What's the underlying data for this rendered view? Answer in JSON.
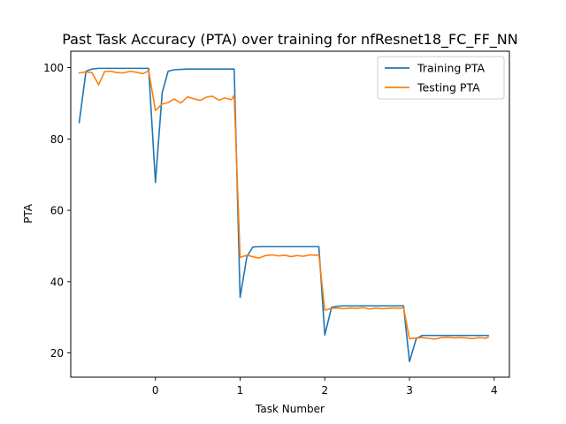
{
  "chart_data": {
    "type": "line",
    "title": "Past Task Accuracy (PTA) over training for nfResnet18_FC_FF_NN",
    "xlabel": "Task Number",
    "ylabel": "PTA",
    "xlim": [
      -1.0,
      4.18
    ],
    "ylim": [
      13.2,
      104.6
    ],
    "xticks": [
      0,
      1,
      2,
      3,
      4
    ],
    "yticks": [
      20,
      40,
      60,
      80,
      100
    ],
    "grid": false,
    "legend_placement": "top-right",
    "series": [
      {
        "name": "Training PTA",
        "color": "#1f77b4",
        "x": [
          -0.9,
          -0.82,
          -0.75,
          -0.67,
          -0.6,
          -0.53,
          -0.45,
          -0.38,
          -0.3,
          -0.22,
          -0.15,
          -0.08,
          0.0,
          0.08,
          0.15,
          0.22,
          0.3,
          0.38,
          0.45,
          0.53,
          0.6,
          0.67,
          0.75,
          0.82,
          0.9,
          0.93,
          1.0,
          1.08,
          1.15,
          1.22,
          1.3,
          1.38,
          1.45,
          1.53,
          1.6,
          1.67,
          1.75,
          1.82,
          1.9,
          1.93,
          2.0,
          2.08,
          2.15,
          2.22,
          2.3,
          2.38,
          2.45,
          2.53,
          2.6,
          2.67,
          2.75,
          2.82,
          2.9,
          2.93,
          3.0,
          3.08,
          3.15,
          3.22,
          3.3,
          3.38,
          3.45,
          3.53,
          3.6,
          3.67,
          3.75,
          3.82,
          3.9,
          3.93
        ],
        "y": [
          84.6,
          99.0,
          99.6,
          99.8,
          99.8,
          99.8,
          99.8,
          99.8,
          99.8,
          99.8,
          99.8,
          99.8,
          67.8,
          93.0,
          99.0,
          99.4,
          99.5,
          99.6,
          99.6,
          99.6,
          99.6,
          99.6,
          99.6,
          99.6,
          99.6,
          99.6,
          35.6,
          47.0,
          49.7,
          49.8,
          49.8,
          49.8,
          49.8,
          49.8,
          49.8,
          49.8,
          49.8,
          49.8,
          49.8,
          49.8,
          25.0,
          32.8,
          33.1,
          33.2,
          33.2,
          33.2,
          33.2,
          33.2,
          33.2,
          33.2,
          33.2,
          33.2,
          33.2,
          33.2,
          17.6,
          24.0,
          24.9,
          24.9,
          24.9,
          24.9,
          24.9,
          24.9,
          24.9,
          24.9,
          24.9,
          24.9,
          24.9,
          24.9
        ]
      },
      {
        "name": "Testing PTA",
        "color": "#ff7f0e",
        "x": [
          -0.9,
          -0.82,
          -0.75,
          -0.67,
          -0.6,
          -0.53,
          -0.45,
          -0.38,
          -0.3,
          -0.22,
          -0.15,
          -0.08,
          0.0,
          0.08,
          0.15,
          0.22,
          0.3,
          0.38,
          0.45,
          0.53,
          0.6,
          0.67,
          0.75,
          0.82,
          0.9,
          0.93,
          1.0,
          1.08,
          1.15,
          1.22,
          1.3,
          1.38,
          1.45,
          1.53,
          1.6,
          1.67,
          1.75,
          1.82,
          1.9,
          1.93,
          2.0,
          2.08,
          2.15,
          2.22,
          2.3,
          2.38,
          2.45,
          2.53,
          2.6,
          2.67,
          2.75,
          2.82,
          2.9,
          2.93,
          3.0,
          3.08,
          3.15,
          3.22,
          3.3,
          3.38,
          3.45,
          3.53,
          3.6,
          3.67,
          3.75,
          3.82,
          3.9,
          3.93
        ],
        "y": [
          98.5,
          98.8,
          98.6,
          95.2,
          98.9,
          99.0,
          98.6,
          98.5,
          99.0,
          98.7,
          98.3,
          99.1,
          88.0,
          89.8,
          90.2,
          91.2,
          90.1,
          91.8,
          91.3,
          90.8,
          91.7,
          92.0,
          90.9,
          91.5,
          91.0,
          92.3,
          46.8,
          47.4,
          47.0,
          46.6,
          47.3,
          47.5,
          47.2,
          47.4,
          47.0,
          47.3,
          47.1,
          47.5,
          47.4,
          47.5,
          32.0,
          32.5,
          32.6,
          32.4,
          32.6,
          32.5,
          32.7,
          32.3,
          32.6,
          32.4,
          32.5,
          32.6,
          32.5,
          32.7,
          24.0,
          24.2,
          24.3,
          24.1,
          23.9,
          24.3,
          24.4,
          24.2,
          24.3,
          24.2,
          24.0,
          24.3,
          24.1,
          24.4
        ]
      }
    ]
  }
}
